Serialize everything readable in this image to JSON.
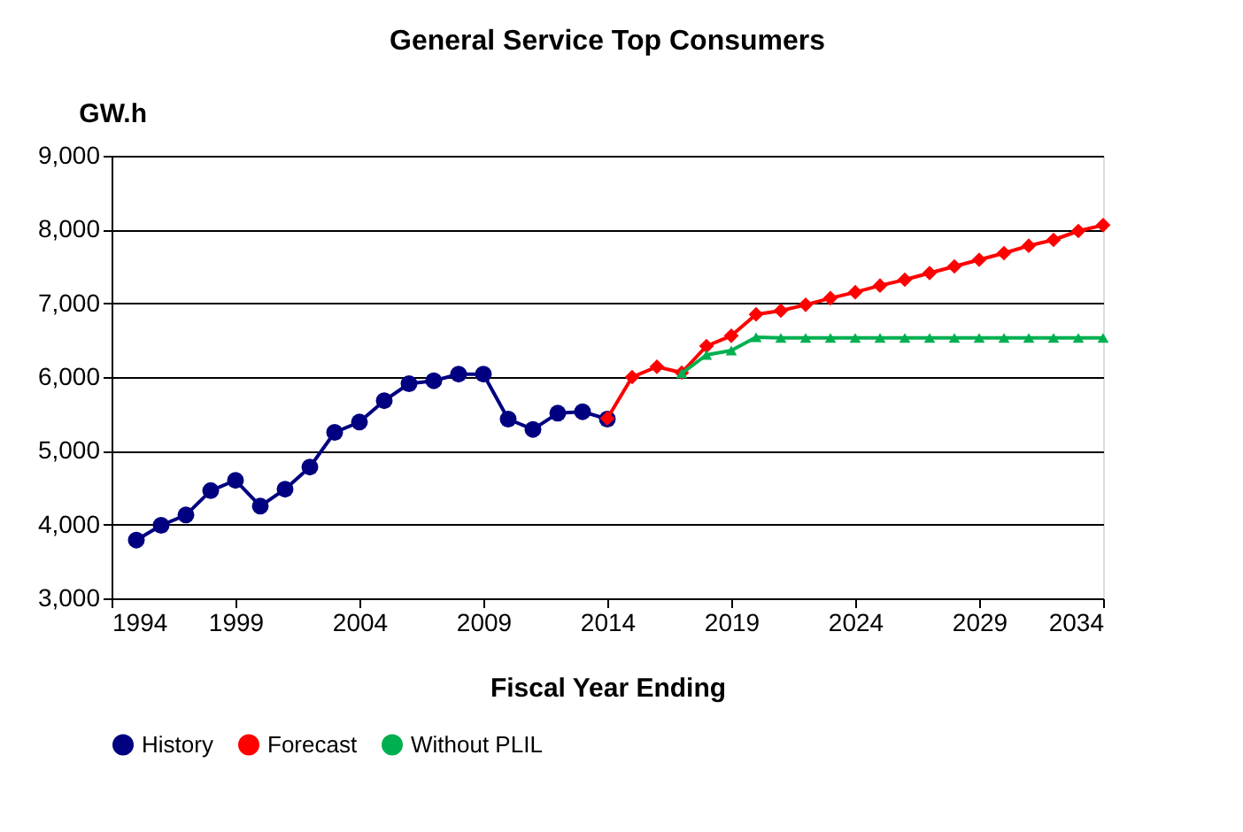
{
  "chart_data": {
    "type": "line",
    "title": "General Service Top Consumers",
    "xlabel": "Fiscal Year Ending",
    "ylabel": "GW.h",
    "xlim": [
      1994,
      2034
    ],
    "xticks": [
      1994,
      1999,
      2004,
      2009,
      2014,
      2019,
      2024,
      2029,
      2034
    ],
    "ylim": [
      3000,
      9000
    ],
    "yticks": [
      {
        "value": 3000,
        "label": "3,000"
      },
      {
        "value": 4000,
        "label": "4,000"
      },
      {
        "value": 5000,
        "label": "5,000"
      },
      {
        "value": 6000,
        "label": "6,000"
      },
      {
        "value": 7000,
        "label": "7,000"
      },
      {
        "value": 8000,
        "label": "8,000"
      },
      {
        "value": 9000,
        "label": "9,000"
      }
    ],
    "grid": "y",
    "legend": "bottom",
    "series": [
      {
        "name": "History",
        "color": "#000080",
        "marker": "circle",
        "x": [
          1995,
          1996,
          1997,
          1998,
          1999,
          2000,
          2001,
          2002,
          2003,
          2004,
          2005,
          2006,
          2007,
          2008,
          2009,
          2010,
          2011,
          2012,
          2013,
          2014
        ],
        "values": [
          3790,
          3990,
          4130,
          4460,
          4600,
          4250,
          4480,
          4780,
          5250,
          5390,
          5680,
          5910,
          5950,
          6040,
          6040,
          5430,
          5290,
          5510,
          5530,
          5430
        ]
      },
      {
        "name": "Forecast",
        "color": "#ff0000",
        "marker": "diamond",
        "x": [
          2014,
          2015,
          2016,
          2017,
          2018,
          2019,
          2020,
          2021,
          2022,
          2023,
          2024,
          2025,
          2026,
          2027,
          2028,
          2029,
          2030,
          2031,
          2032,
          2033,
          2034
        ],
        "values": [
          5440,
          6000,
          6140,
          6060,
          6420,
          6560,
          6850,
          6900,
          6980,
          7070,
          7150,
          7240,
          7320,
          7410,
          7500,
          7590,
          7680,
          7780,
          7860,
          7980,
          8060
        ]
      },
      {
        "name": "Without PLIL",
        "color": "#00b050",
        "marker": "triangle",
        "x": [
          2017,
          2018,
          2019,
          2020,
          2021,
          2022,
          2023,
          2024,
          2025,
          2026,
          2027,
          2028,
          2029,
          2030,
          2031,
          2032,
          2033,
          2034
        ],
        "values": [
          6050,
          6300,
          6360,
          6540,
          6530,
          6530,
          6530,
          6530,
          6530,
          6530,
          6530,
          6530,
          6530,
          6530,
          6530,
          6530,
          6530,
          6530
        ]
      }
    ]
  }
}
